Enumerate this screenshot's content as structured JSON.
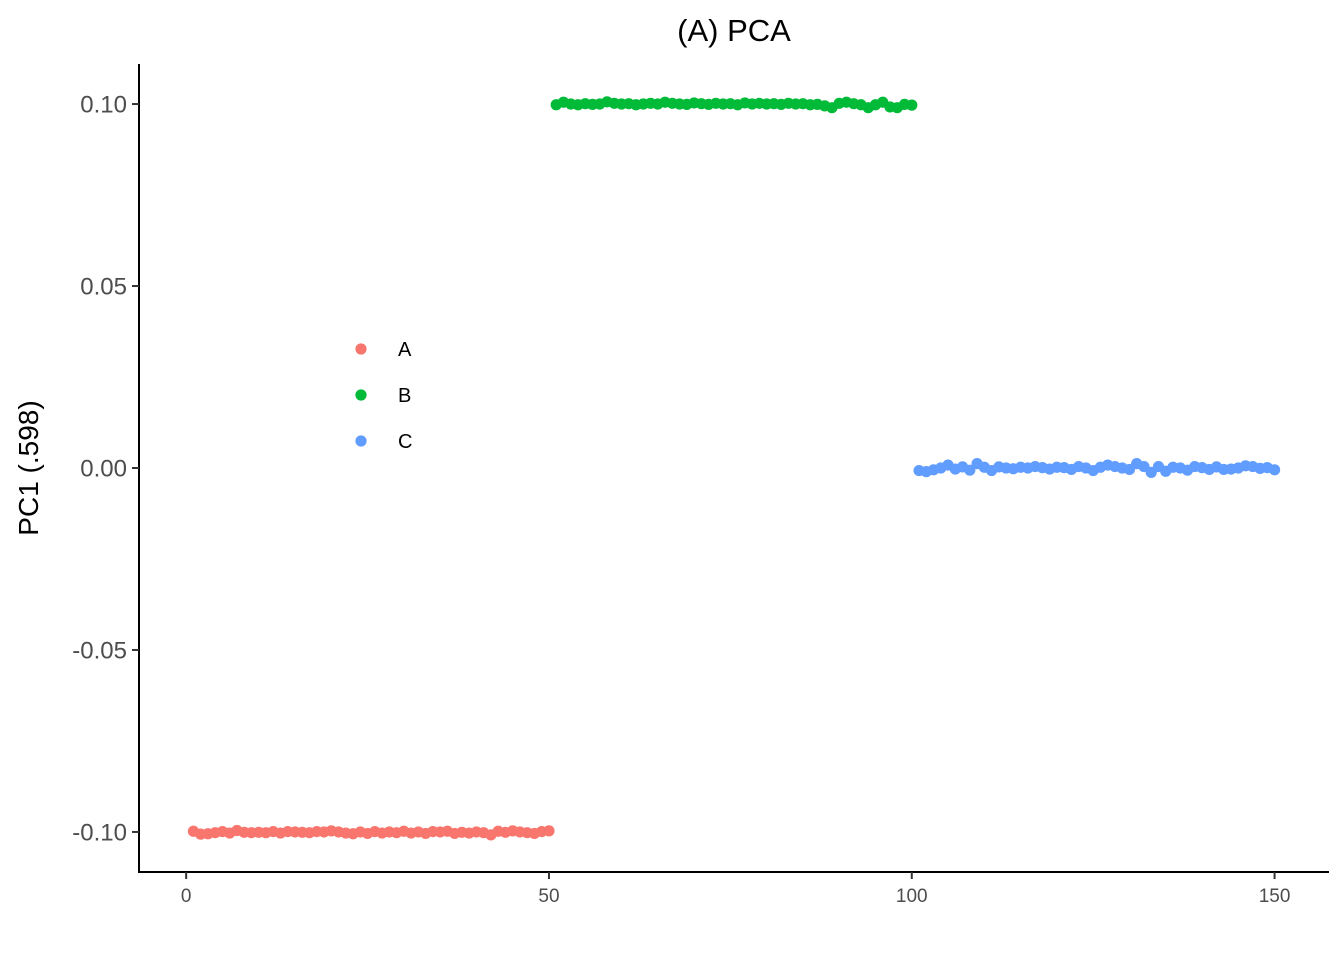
{
  "chart_data": {
    "type": "scatter",
    "title": "(A) PCA",
    "xlabel": "",
    "ylabel": "PC1 (.598)",
    "xlim": [
      -6.5,
      157.5
    ],
    "ylim": [
      -0.111,
      0.111
    ],
    "xticks": [
      0,
      50,
      100,
      150
    ],
    "xtick_labels": [
      "0",
      "50",
      "100",
      "150"
    ],
    "yticks": [
      0.1,
      0.05,
      0.0,
      -0.05,
      -0.1
    ],
    "ytick_labels": [
      "0.10",
      "0.05",
      "0.00",
      "-0.05",
      "-0.10"
    ],
    "grid": false,
    "legend_position": "inside-left",
    "series": [
      {
        "name": "A",
        "color": "#F8766D",
        "x": [
          1,
          2,
          3,
          4,
          5,
          6,
          7,
          8,
          9,
          10,
          11,
          12,
          13,
          14,
          15,
          16,
          17,
          18,
          19,
          20,
          21,
          22,
          23,
          24,
          25,
          26,
          27,
          28,
          29,
          30,
          31,
          32,
          33,
          34,
          35,
          36,
          37,
          38,
          39,
          40,
          41,
          42,
          43,
          44,
          45,
          46,
          47,
          48,
          49,
          50
        ],
        "y": [
          -0.0998,
          -0.1006,
          -0.1005,
          -0.1002,
          -0.0999,
          -0.1003,
          -0.0996,
          -0.1001,
          -0.1002,
          -0.1001,
          -0.1002,
          -0.0999,
          -0.1003,
          -0.0999,
          -0.1,
          -0.1001,
          -0.1002,
          -0.0999,
          -0.1,
          -0.0997,
          -0.1,
          -0.1003,
          -0.1005,
          -0.1,
          -0.1004,
          -0.0999,
          -0.1003,
          -0.1,
          -0.1002,
          -0.0998,
          -0.1003,
          -0.1,
          -0.1004,
          -0.0999,
          -0.1,
          -0.0998,
          -0.1004,
          -0.1001,
          -0.1003,
          -0.1,
          -0.1002,
          -0.1008,
          -0.0998,
          -0.1001,
          -0.0997,
          -0.1,
          -0.1002,
          -0.1004,
          -0.0999,
          -0.0997
        ]
      },
      {
        "name": "B",
        "color": "#00BA38",
        "x": [
          51,
          52,
          53,
          54,
          55,
          56,
          57,
          58,
          59,
          60,
          61,
          62,
          63,
          64,
          65,
          66,
          67,
          68,
          69,
          70,
          71,
          72,
          73,
          74,
          75,
          76,
          77,
          78,
          79,
          80,
          81,
          82,
          83,
          84,
          85,
          86,
          87,
          88,
          89,
          90,
          91,
          92,
          93,
          94,
          95,
          96,
          97,
          98,
          99,
          100
        ],
        "y": [
          0.0998,
          0.1005,
          0.1,
          0.0998,
          0.1001,
          0.0999,
          0.1,
          0.1006,
          0.1002,
          0.1,
          0.1001,
          0.0998,
          0.1,
          0.1002,
          0.1,
          0.1005,
          0.1002,
          0.1,
          0.0999,
          0.1003,
          0.1001,
          0.0999,
          0.1002,
          0.1,
          0.1001,
          0.0998,
          0.1003,
          0.1,
          0.1002,
          0.1,
          0.1001,
          0.0999,
          0.1002,
          0.1,
          0.1001,
          0.0998,
          0.0999,
          0.0995,
          0.099,
          0.1002,
          0.1005,
          0.1001,
          0.0998,
          0.099,
          0.0998,
          0.1005,
          0.0992,
          0.099,
          0.0999,
          0.0997
        ]
      },
      {
        "name": "C",
        "color": "#619CFF",
        "x": [
          101,
          102,
          103,
          104,
          105,
          106,
          107,
          108,
          109,
          110,
          111,
          112,
          113,
          114,
          115,
          116,
          117,
          118,
          119,
          120,
          121,
          122,
          123,
          124,
          125,
          126,
          127,
          128,
          129,
          130,
          131,
          132,
          133,
          134,
          135,
          136,
          137,
          138,
          139,
          140,
          141,
          142,
          143,
          144,
          145,
          146,
          147,
          148,
          149,
          150
        ],
        "y": [
          -0.0007,
          -0.001,
          -0.0005,
          0.0,
          0.0008,
          -0.0003,
          0.0003,
          -0.0006,
          0.0012,
          0.0002,
          -0.0007,
          0.0003,
          0.0,
          -0.0002,
          0.0002,
          0.0,
          0.0004,
          0.0001,
          -0.0003,
          0.0002,
          0.0001,
          -0.0004,
          0.0004,
          0.0,
          -0.0007,
          0.0002,
          0.0008,
          0.0004,
          0.0,
          -0.0004,
          0.0012,
          0.0004,
          -0.0012,
          0.0004,
          -0.0009,
          0.0002,
          0.0,
          -0.0006,
          0.0004,
          0.0001,
          -0.0004,
          0.0003,
          -0.0004,
          -0.0003,
          0.0,
          0.0006,
          0.0004,
          -0.0001,
          0.0001,
          -0.0005
        ]
      }
    ]
  }
}
